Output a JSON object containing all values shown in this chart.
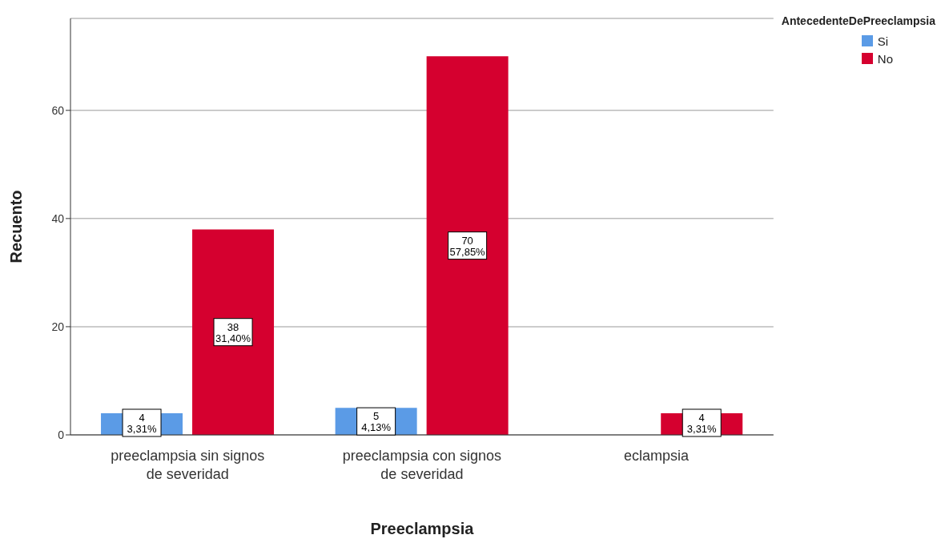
{
  "chart_data": {
    "type": "bar",
    "xlabel": "Preeclampsia",
    "ylabel": "Recuento",
    "legend_title": "AntecedenteDePreeclampsia",
    "categories": [
      "preeclampsia sin signos de severidad",
      "preeclampsia con signos de severidad",
      "eclampsia"
    ],
    "series": [
      {
        "name": "Si",
        "color": "#5b9be6",
        "values": [
          4,
          5,
          null
        ],
        "value_labels": [
          "4\n3,31%",
          "5\n4,13%",
          null
        ]
      },
      {
        "name": "No",
        "color": "#d5002f",
        "values": [
          38,
          70,
          4
        ],
        "value_labels": [
          "38\n31,40%",
          "70\n57,85%",
          "4\n3,31%"
        ]
      }
    ],
    "ylim": [
      0,
      77
    ],
    "yticks": [
      0,
      20,
      40,
      60
    ],
    "grid": "y",
    "legend": "top right"
  }
}
